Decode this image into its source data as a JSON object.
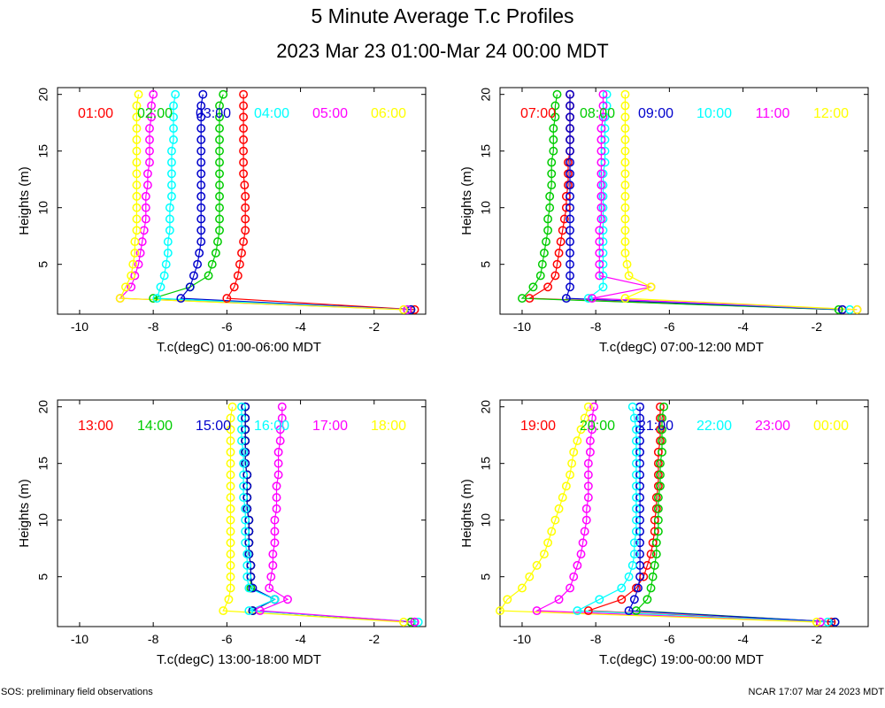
{
  "title": "5 Minute Average T.c Profiles",
  "subtitle": "2023 Mar 23 01:00-Mar 24 00:00 MDT",
  "footer_left": "SOS: preliminary field observations",
  "footer_right": "NCAR 17:07 Mar 24 2023 MDT",
  "chart_data": [
    {
      "type": "scatter",
      "xlabel": "T.c(degC) 01:00-06:00 MDT",
      "ylabel": "Heights (m)",
      "xlim": [
        -10.6,
        -0.6
      ],
      "ylim": [
        0.6,
        20.6
      ],
      "xticks": [
        -10,
        -8,
        -6,
        -4,
        -2
      ],
      "yticks": [
        5,
        10,
        15,
        20
      ],
      "heights": [
        1,
        2,
        3,
        4,
        5,
        6,
        7,
        8,
        9,
        10,
        11,
        12,
        13,
        14,
        15,
        16,
        17,
        18,
        19,
        20
      ],
      "series": [
        {
          "name": "01:00",
          "color": "#ff0000",
          "values": [
            -0.9,
            -6.0,
            -5.8,
            -5.7,
            -5.65,
            -5.6,
            -5.55,
            -5.5,
            -5.5,
            -5.5,
            -5.5,
            -5.52,
            -5.55,
            -5.55,
            -5.55,
            -5.55,
            -5.55,
            -5.55,
            -5.55,
            -5.55
          ]
        },
        {
          "name": "02:00",
          "color": "#00cc00",
          "values": [
            -1.0,
            -8.0,
            -7.0,
            -6.5,
            -6.4,
            -6.3,
            -6.25,
            -6.2,
            -6.2,
            -6.2,
            -6.2,
            -6.2,
            -6.2,
            -6.2,
            -6.2,
            -6.2,
            -6.2,
            -6.2,
            -6.2,
            -6.1
          ]
        },
        {
          "name": "03:00",
          "color": "#0000cc",
          "values": [
            -1.0,
            -7.25,
            -7.0,
            -6.9,
            -6.8,
            -6.75,
            -6.7,
            -6.7,
            -6.7,
            -6.7,
            -6.7,
            -6.7,
            -6.7,
            -6.7,
            -6.7,
            -6.7,
            -6.7,
            -6.7,
            -6.7,
            -6.65
          ]
        },
        {
          "name": "04:00",
          "color": "#00ffff",
          "values": [
            -1.1,
            -7.9,
            -7.8,
            -7.7,
            -7.65,
            -7.6,
            -7.6,
            -7.55,
            -7.55,
            -7.55,
            -7.5,
            -7.5,
            -7.5,
            -7.5,
            -7.5,
            -7.45,
            -7.45,
            -7.45,
            -7.45,
            -7.4
          ]
        },
        {
          "name": "05:00",
          "color": "#ff00ff",
          "values": [
            -1.1,
            -8.9,
            -8.6,
            -8.5,
            -8.4,
            -8.35,
            -8.3,
            -8.25,
            -8.2,
            -8.2,
            -8.2,
            -8.15,
            -8.15,
            -8.1,
            -8.1,
            -8.1,
            -8.1,
            -8.05,
            -8.05,
            -8.0
          ]
        },
        {
          "name": "06:00",
          "color": "#ffff00",
          "values": [
            -1.2,
            -8.9,
            -8.75,
            -8.6,
            -8.55,
            -8.5,
            -8.5,
            -8.45,
            -8.45,
            -8.45,
            -8.45,
            -8.45,
            -8.45,
            -8.45,
            -8.45,
            -8.45,
            -8.45,
            -8.45,
            -8.45,
            -8.4
          ]
        }
      ]
    },
    {
      "type": "scatter",
      "xlabel": "T.c(degC) 07:00-12:00 MDT",
      "ylabel": "Heights (m)",
      "xlim": [
        -10.6,
        -0.6
      ],
      "ylim": [
        0.6,
        20.6
      ],
      "xticks": [
        -10,
        -8,
        -6,
        -4,
        -2
      ],
      "yticks": [
        5,
        10,
        15,
        20
      ],
      "heights": [
        1,
        2,
        3,
        4,
        5,
        6,
        7,
        8,
        9,
        10,
        11,
        12,
        13,
        14,
        15,
        16,
        17,
        18,
        19,
        20
      ],
      "series": [
        {
          "name": "07:00",
          "color": "#ff0000",
          "values": [
            -1.3,
            -9.8,
            -9.3,
            -9.1,
            -9.05,
            -9.0,
            -8.95,
            -8.9,
            -8.85,
            -8.8,
            -8.8,
            -8.75,
            -8.75,
            -8.75,
            -8.7,
            -8.7,
            -8.7,
            -8.7,
            -8.7,
            -8.7
          ]
        },
        {
          "name": "08:00",
          "color": "#00cc00",
          "values": [
            -1.4,
            -10.0,
            -9.7,
            -9.5,
            -9.45,
            -9.4,
            -9.35,
            -9.3,
            -9.3,
            -9.25,
            -9.25,
            -9.2,
            -9.2,
            -9.2,
            -9.15,
            -9.15,
            -9.15,
            -9.1,
            -9.1,
            -9.05
          ]
        },
        {
          "name": "09:00",
          "color": "#0000cc",
          "values": [
            -1.3,
            -8.8,
            -8.7,
            -8.7,
            -8.7,
            -8.7,
            -8.7,
            -8.7,
            -8.7,
            -8.7,
            -8.7,
            -8.7,
            -8.7,
            -8.7,
            -8.7,
            -8.7,
            -8.7,
            -8.7,
            -8.7,
            -8.7
          ]
        },
        {
          "name": "10:00",
          "color": "#00ffff",
          "values": [
            -1.1,
            -8.2,
            -7.8,
            -7.8,
            -7.8,
            -7.8,
            -7.8,
            -7.8,
            -7.8,
            -7.8,
            -7.8,
            -7.8,
            -7.8,
            -7.75,
            -7.75,
            -7.75,
            -7.75,
            -7.75,
            -7.7,
            -7.7
          ]
        },
        {
          "name": "11:00",
          "color": "#ff00ff",
          "values": [
            -0.9,
            -8.1,
            -6.5,
            -7.9,
            -7.9,
            -7.9,
            -7.9,
            -7.9,
            -7.85,
            -7.85,
            -7.85,
            -7.85,
            -7.85,
            -7.85,
            -7.85,
            -7.85,
            -7.85,
            -7.8,
            -7.8,
            -7.8
          ]
        },
        {
          "name": "12:00",
          "color": "#ffff00",
          "values": [
            -0.9,
            -7.2,
            -6.5,
            -7.1,
            -7.15,
            -7.2,
            -7.2,
            -7.2,
            -7.2,
            -7.2,
            -7.2,
            -7.2,
            -7.2,
            -7.2,
            -7.2,
            -7.2,
            -7.2,
            -7.2,
            -7.2,
            -7.2
          ]
        }
      ]
    },
    {
      "type": "scatter",
      "xlabel": "T.c(degC) 13:00-18:00 MDT",
      "ylabel": "Heights (m)",
      "xlim": [
        -10.6,
        -0.6
      ],
      "ylim": [
        0.6,
        20.6
      ],
      "xticks": [
        -10,
        -8,
        -6,
        -4,
        -2
      ],
      "yticks": [
        5,
        10,
        15,
        20
      ],
      "heights": [
        1,
        2,
        3,
        4,
        5,
        6,
        7,
        8,
        9,
        10,
        11,
        12,
        13,
        14,
        15,
        16,
        17,
        18,
        19,
        20
      ],
      "series": [
        {
          "name": "13:00",
          "color": "#ff0000",
          "values": [
            -1.0,
            -5.3,
            -4.7,
            -5.35,
            -5.35,
            -5.35,
            -5.4,
            -5.4,
            -5.4,
            -5.4,
            -5.45,
            -5.45,
            -5.45,
            -5.45,
            -5.5,
            -5.5,
            -5.5,
            -5.5,
            -5.5,
            -5.5
          ]
        },
        {
          "name": "14:00",
          "color": "#00cc00",
          "values": [
            -1.0,
            -5.3,
            -4.7,
            -5.35,
            -5.35,
            -5.35,
            -5.4,
            -5.4,
            -5.4,
            -5.4,
            -5.45,
            -5.45,
            -5.45,
            -5.45,
            -5.5,
            -5.5,
            -5.5,
            -5.5,
            -5.5,
            -5.5
          ]
        },
        {
          "name": "15:00",
          "color": "#0000cc",
          "values": [
            -0.9,
            -5.3,
            -4.7,
            -5.3,
            -5.35,
            -5.35,
            -5.4,
            -5.4,
            -5.4,
            -5.4,
            -5.45,
            -5.45,
            -5.45,
            -5.45,
            -5.5,
            -5.5,
            -5.5,
            -5.5,
            -5.5,
            -5.5
          ]
        },
        {
          "name": "16:00",
          "color": "#00ffff",
          "values": [
            -0.8,
            -5.4,
            -4.7,
            -5.4,
            -5.45,
            -5.45,
            -5.45,
            -5.5,
            -5.5,
            -5.5,
            -5.5,
            -5.55,
            -5.55,
            -5.55,
            -5.55,
            -5.55,
            -5.6,
            -5.6,
            -5.6,
            -5.6
          ]
        },
        {
          "name": "17:00",
          "color": "#ff00ff",
          "values": [
            -0.9,
            -5.1,
            -4.35,
            -4.85,
            -4.8,
            -4.75,
            -4.75,
            -4.7,
            -4.7,
            -4.7,
            -4.65,
            -4.65,
            -4.65,
            -4.6,
            -4.6,
            -4.6,
            -4.55,
            -4.55,
            -4.5,
            -4.5
          ]
        },
        {
          "name": "18:00",
          "color": "#ffff00",
          "values": [
            -1.2,
            -6.1,
            -5.95,
            -5.9,
            -5.9,
            -5.9,
            -5.9,
            -5.9,
            -5.9,
            -5.9,
            -5.9,
            -5.9,
            -5.9,
            -5.9,
            -5.9,
            -5.9,
            -5.9,
            -5.9,
            -5.9,
            -5.85
          ]
        }
      ]
    },
    {
      "type": "scatter",
      "xlabel": "T.c(degC) 19:00-00:00 MDT",
      "ylabel": "Heights (m)",
      "xlim": [
        -10.6,
        -0.6
      ],
      "ylim": [
        0.6,
        20.6
      ],
      "xticks": [
        -10,
        -8,
        -6,
        -4,
        -2
      ],
      "yticks": [
        5,
        10,
        15,
        20
      ],
      "heights": [
        1,
        2,
        3,
        4,
        5,
        6,
        7,
        8,
        9,
        10,
        11,
        12,
        13,
        14,
        15,
        16,
        17,
        18,
        19,
        20
      ],
      "series": [
        {
          "name": "19:00",
          "color": "#ff0000",
          "values": [
            -1.6,
            -8.2,
            -7.3,
            -6.9,
            -6.7,
            -6.6,
            -6.5,
            -6.45,
            -6.4,
            -6.4,
            -6.35,
            -6.35,
            -6.3,
            -6.3,
            -6.3,
            -6.3,
            -6.25,
            -6.25,
            -6.25,
            -6.25
          ]
        },
        {
          "name": "20:00",
          "color": "#00cc00",
          "values": [
            -1.5,
            -6.9,
            -6.6,
            -6.5,
            -6.45,
            -6.4,
            -6.35,
            -6.35,
            -6.3,
            -6.3,
            -6.3,
            -6.3,
            -6.25,
            -6.25,
            -6.25,
            -6.2,
            -6.2,
            -6.2,
            -6.2,
            -6.15
          ]
        },
        {
          "name": "21:00",
          "color": "#0000cc",
          "values": [
            -1.5,
            -7.1,
            -6.95,
            -6.85,
            -6.8,
            -6.8,
            -6.8,
            -6.8,
            -6.8,
            -6.8,
            -6.8,
            -6.8,
            -6.8,
            -6.8,
            -6.8,
            -6.8,
            -6.8,
            -6.8,
            -6.8,
            -6.8
          ]
        },
        {
          "name": "22:00",
          "color": "#00ffff",
          "values": [
            -1.7,
            -8.5,
            -7.9,
            -7.3,
            -7.1,
            -7.0,
            -6.95,
            -6.95,
            -6.9,
            -6.9,
            -6.9,
            -6.9,
            -6.9,
            -6.9,
            -6.9,
            -6.9,
            -6.9,
            -6.9,
            -6.95,
            -7.0
          ]
        },
        {
          "name": "23:00",
          "color": "#ff00ff",
          "values": [
            -1.9,
            -9.6,
            -9.0,
            -8.7,
            -8.6,
            -8.5,
            -8.4,
            -8.35,
            -8.3,
            -8.25,
            -8.25,
            -8.2,
            -8.2,
            -8.2,
            -8.2,
            -8.15,
            -8.15,
            -8.1,
            -8.1,
            -8.05
          ]
        },
        {
          "name": "00:00",
          "color": "#ffff00",
          "values": [
            -2.0,
            -10.6,
            -10.4,
            -10.0,
            -9.8,
            -9.6,
            -9.4,
            -9.3,
            -9.2,
            -9.1,
            -9.0,
            -8.9,
            -8.8,
            -8.7,
            -8.65,
            -8.6,
            -8.5,
            -8.4,
            -8.3,
            -8.2
          ]
        }
      ]
    }
  ]
}
